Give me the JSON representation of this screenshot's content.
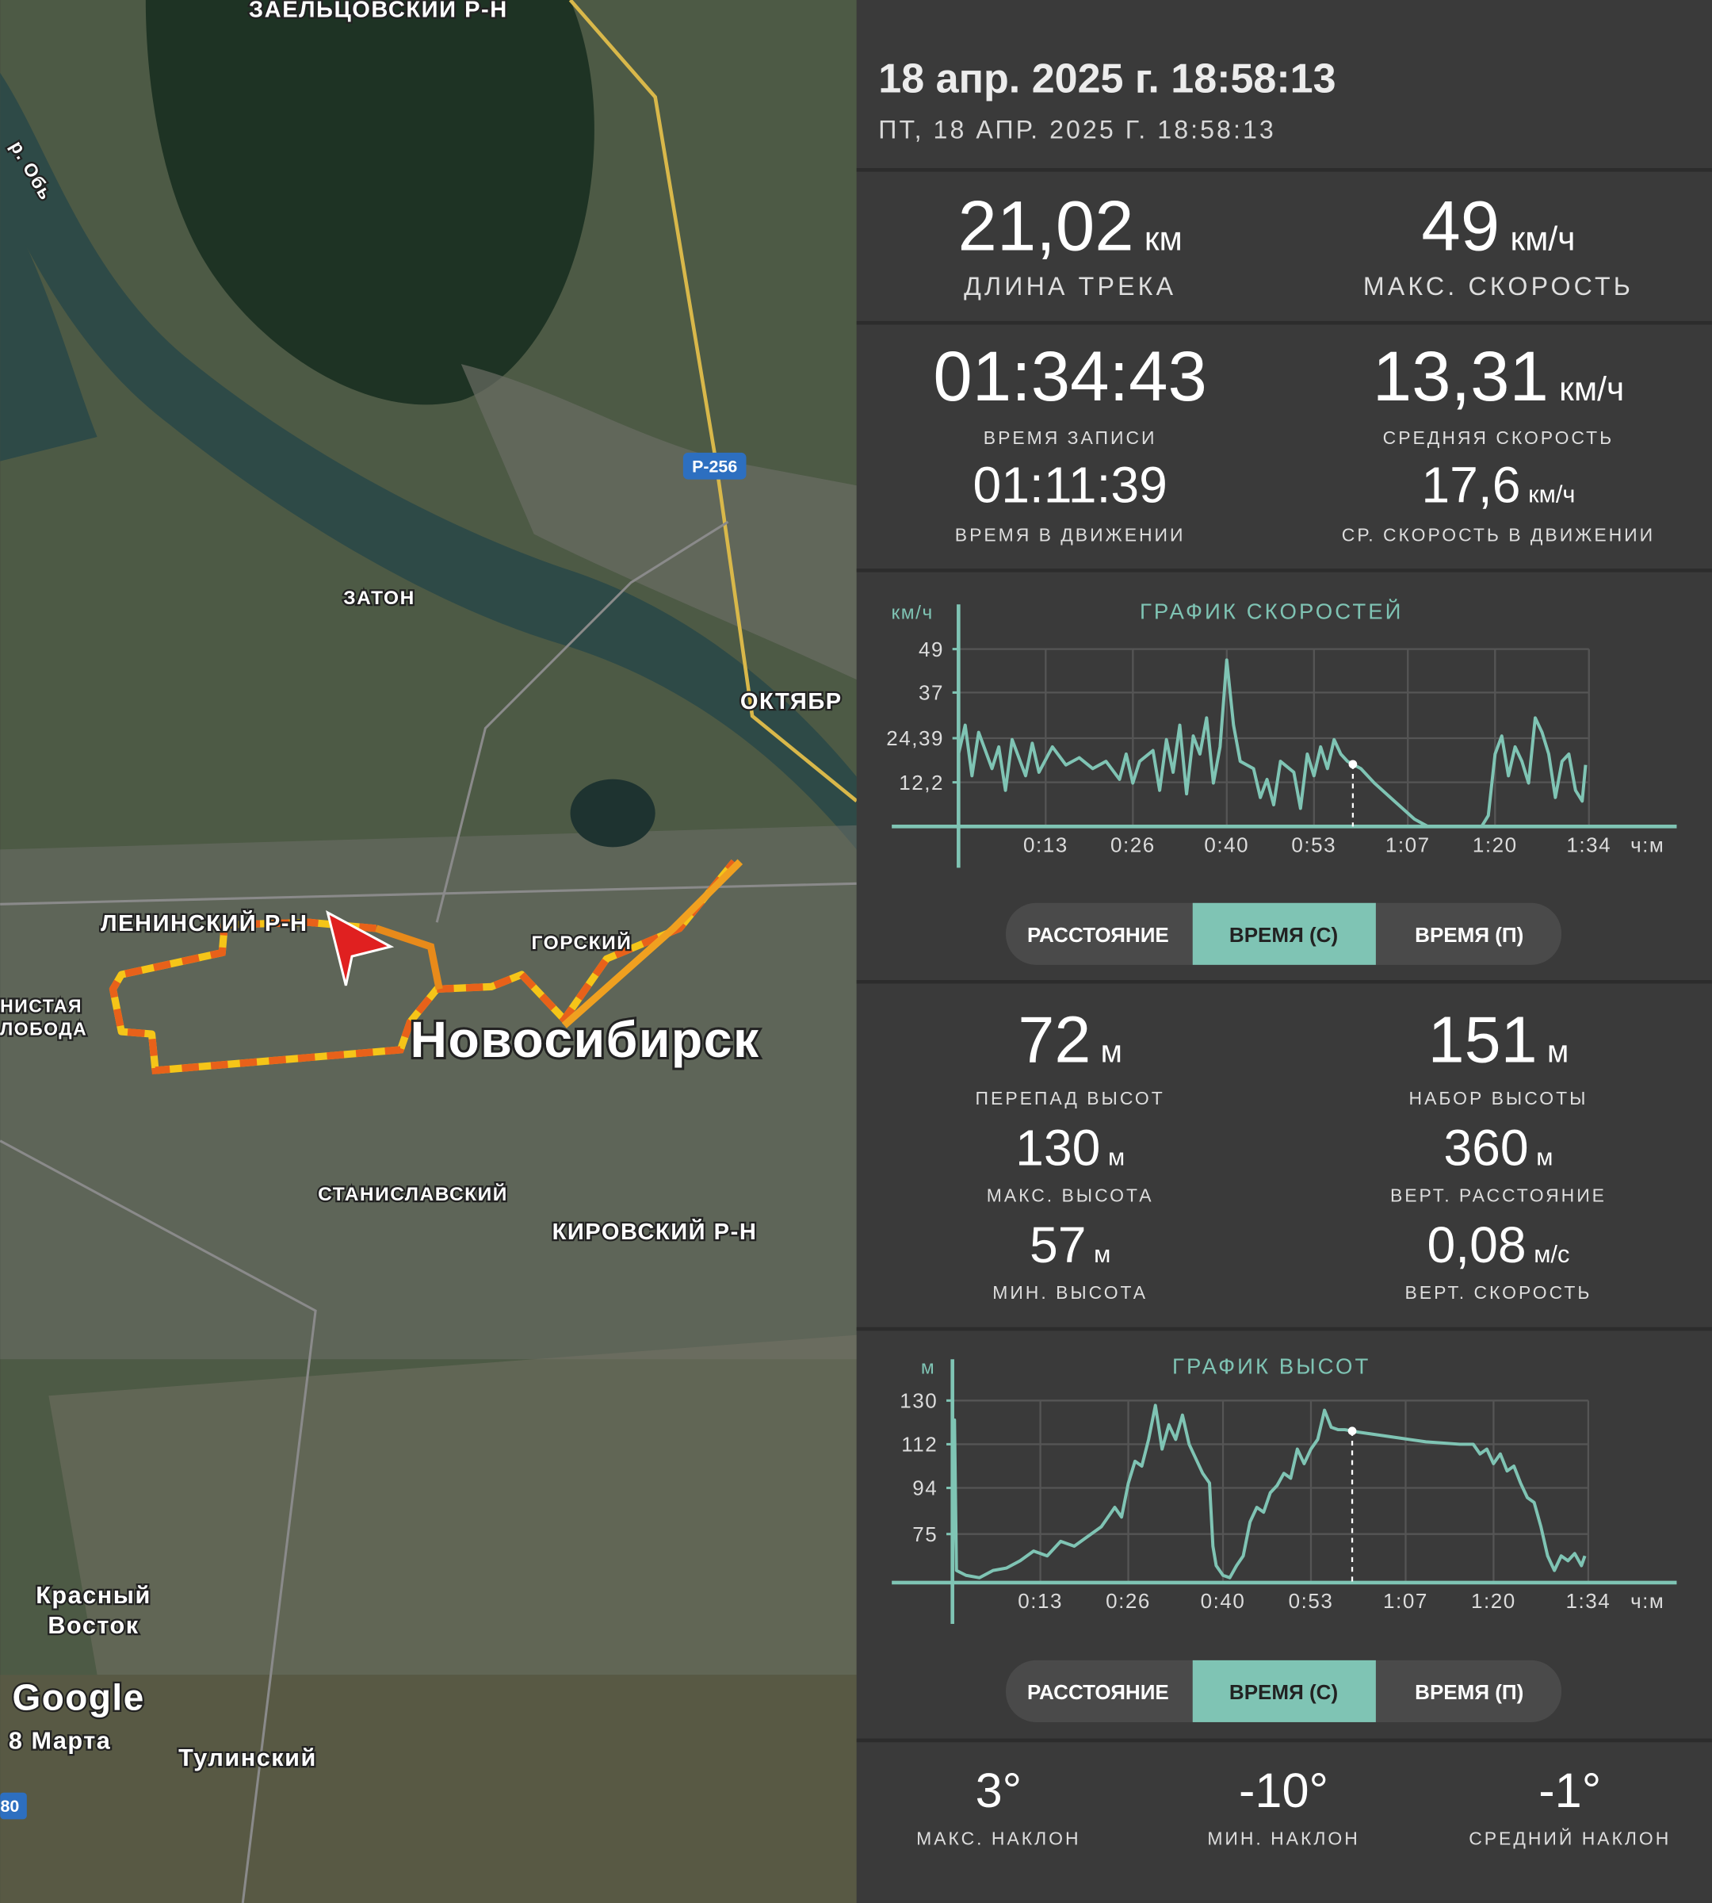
{
  "map": {
    "labels": [
      "ЗАЕЛЬЦОВСКИЙ Р-Н",
      "р. Обь",
      "ЗАТОН",
      "ОКТЯБР",
      "ЛЕНИНСКИЙ Р-Н",
      "ГОРСКИЙ",
      "НИСТАЯ",
      "ЛОБОДА",
      "Новосибирск",
      "СТАНИСЛАВСКИЙ",
      "КИРОВСКИЙ Р-Н",
      "Красный",
      "Восток",
      "8 Марта",
      "Тулинский"
    ],
    "road_badges": [
      "Р-256",
      "80"
    ],
    "brand": "Google"
  },
  "header": {
    "title": "18 апр. 2025 г. 18:58:13",
    "subtitle": "ПТ, 18 АПР. 2025 Г. 18:58:13"
  },
  "track_stats": [
    {
      "value": "21,02",
      "unit": "км",
      "label": "ДЛИНА ТРЕКА"
    },
    {
      "value": "49",
      "unit": "км/ч",
      "label": "МАКС. СКОРОСТЬ"
    }
  ],
  "time_stats": [
    {
      "value": "01:34:43",
      "label": "ВРЕМЯ ЗАПИСИ"
    },
    {
      "value": "13,31",
      "unit": "км/ч",
      "label": "СРЕДНЯЯ СКОРОСТЬ"
    },
    {
      "value": "01:11:39",
      "label": "ВРЕМЯ В ДВИЖЕНИИ"
    },
    {
      "value": "17,6",
      "unit": "км/ч",
      "label": "СР. СКОРОСТЬ В ДВИЖЕНИИ"
    }
  ],
  "elevation_stats": [
    {
      "value": "72",
      "unit": "м",
      "label": "ПЕРЕПАД ВЫСОТ"
    },
    {
      "value": "151",
      "unit": "м",
      "label": "НАБОР ВЫСОТЫ"
    },
    {
      "value": "130",
      "unit": "м",
      "label": "МАКС. ВЫСОТА"
    },
    {
      "value": "360",
      "unit": "м",
      "label": "ВЕРТ. РАССТОЯНИЕ"
    },
    {
      "value": "57",
      "unit": "м",
      "label": "МИН. ВЫСОТА"
    },
    {
      "value": "0,08",
      "unit": "м/с",
      "label": "ВЕРТ. СКОРОСТЬ"
    }
  ],
  "slope_stats": [
    {
      "value": "3°",
      "label": "МАКС. НАКЛОН"
    },
    {
      "value": "-10°",
      "label": "МИН. НАКЛОН"
    },
    {
      "value": "-1°",
      "label": "СРЕДНИЙ НАКЛОН"
    }
  ],
  "mode_buttons": [
    {
      "labels": [
        "РАССТОЯНИЕ",
        "ВРЕМЯ (С)",
        "ВРЕМЯ (П)"
      ],
      "active": 1
    },
    {
      "labels": [
        "РАССТОЯНИЕ",
        "ВРЕМЯ (С)",
        "ВРЕМЯ (П)"
      ],
      "active": 1
    }
  ],
  "chart_data": [
    {
      "type": "line",
      "title": "ГРАФИК СКОРОСТЕЙ",
      "y_unit": "км/ч",
      "x_unit": "ч:м",
      "color": "#7fc4b4",
      "grid": true,
      "xlim": [
        0,
        106
      ],
      "ylim": [
        0,
        60
      ],
      "xticks": [
        {
          "value": 13,
          "label": "0:13"
        },
        {
          "value": 26,
          "label": "0:26"
        },
        {
          "value": 40,
          "label": "0:40"
        },
        {
          "value": 53,
          "label": "0:53"
        },
        {
          "value": 67,
          "label": "1:07"
        },
        {
          "value": 80,
          "label": "1:20"
        },
        {
          "value": 94,
          "label": "1:34"
        }
      ],
      "yticks": [
        {
          "value": 12.2,
          "label": "12,2"
        },
        {
          "value": 24.39,
          "label": "24,39"
        },
        37,
        49
      ],
      "x": [
        0,
        1,
        2,
        3,
        5,
        6,
        7,
        8,
        10,
        11,
        12,
        14,
        16,
        18,
        20,
        22,
        24,
        25,
        26,
        27,
        29,
        30,
        31,
        32,
        33,
        34,
        35,
        36,
        37,
        38,
        39,
        40,
        41,
        42,
        44,
        45,
        46,
        47,
        48,
        50,
        51,
        52,
        53,
        54,
        55,
        56,
        57,
        58,
        60,
        62,
        65,
        68,
        70,
        74,
        78,
        79,
        80,
        81,
        82,
        83,
        84,
        85,
        86,
        87,
        88,
        89,
        90,
        91,
        92,
        93,
        93.5
      ],
      "values": [
        20,
        28,
        14,
        26,
        16,
        22,
        10,
        24,
        14,
        23,
        15,
        22,
        17,
        19,
        16,
        18,
        13,
        20,
        12,
        18,
        21,
        10,
        24,
        15,
        28,
        9,
        25,
        20,
        30,
        12,
        22,
        46,
        28,
        18,
        16,
        8,
        13,
        6,
        18,
        15,
        5,
        20,
        14,
        22,
        16,
        24,
        20,
        18,
        16,
        12,
        7,
        2,
        0,
        0,
        0,
        3,
        20,
        25,
        14,
        22,
        18,
        12,
        30,
        26,
        20,
        8,
        18,
        20,
        10,
        7,
        17
      ],
      "cursor_x": 58.8
    },
    {
      "type": "line",
      "title": "ГРАФИК ВЫСОТ",
      "y_unit": "м",
      "x_unit": "ч:м",
      "color": "#7fc4b4",
      "grid": true,
      "xlim": [
        0,
        106
      ],
      "ylim": [
        55,
        145
      ],
      "xticks": [
        {
          "value": 13,
          "label": "0:13"
        },
        {
          "value": 26,
          "label": "0:26"
        },
        {
          "value": 40,
          "label": "0:40"
        },
        {
          "value": 53,
          "label": "0:53"
        },
        {
          "value": 67,
          "label": "1:07"
        },
        {
          "value": 80,
          "label": "1:20"
        },
        {
          "value": 94,
          "label": "1:34"
        }
      ],
      "yticks": [
        75,
        94,
        112,
        130
      ],
      "x": [
        0,
        0.3,
        0.6,
        2,
        4,
        6,
        8,
        10,
        12,
        14,
        16,
        18,
        20,
        22,
        24,
        25,
        26,
        27,
        28,
        29,
        30,
        31,
        32,
        33,
        34,
        35,
        36,
        37,
        38,
        38.5,
        39,
        40,
        41,
        42,
        43,
        44,
        45,
        46,
        47,
        48,
        49,
        50,
        51,
        52,
        53,
        54,
        55,
        56,
        57,
        58,
        60,
        65,
        70,
        75,
        77,
        78,
        79,
        80,
        81,
        82,
        83,
        84,
        85,
        86,
        87,
        88,
        89,
        90,
        91,
        92,
        93,
        93.5
      ],
      "values": [
        60,
        122,
        60,
        58,
        57,
        60,
        61,
        64,
        68,
        66,
        72,
        70,
        74,
        78,
        86,
        82,
        96,
        105,
        103,
        114,
        128,
        110,
        120,
        114,
        124,
        112,
        106,
        100,
        96,
        70,
        62,
        58,
        57,
        62,
        66,
        80,
        86,
        84,
        92,
        95,
        100,
        98,
        110,
        104,
        110,
        114,
        126,
        119,
        118,
        118,
        117,
        115,
        113,
        112,
        112,
        108,
        110,
        104,
        108,
        101,
        103,
        96,
        90,
        88,
        78,
        66,
        60,
        66,
        64,
        67,
        62,
        66
      ],
      "cursor_x": 59.1
    }
  ]
}
